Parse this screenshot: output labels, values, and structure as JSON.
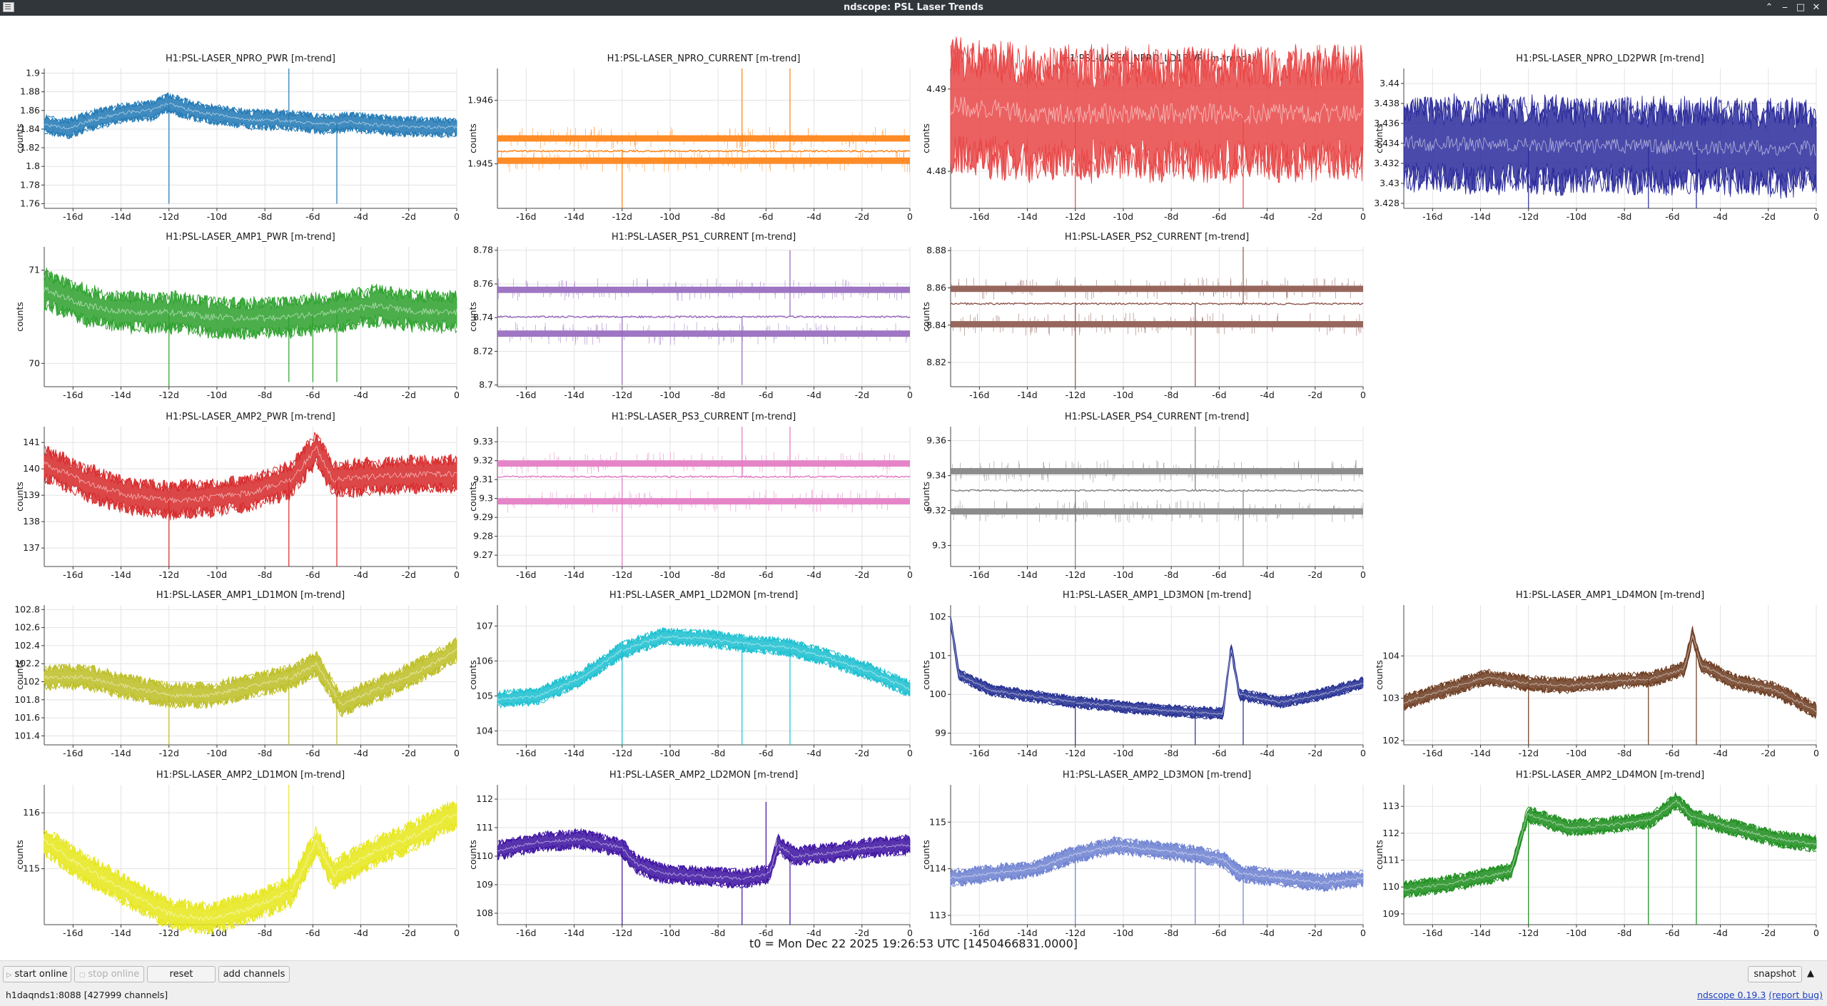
{
  "window": {
    "title": "ndscope: PSL Laser Trends"
  },
  "colors": {
    "titlebar": "#31363b",
    "grid": "#e3e3e3"
  },
  "t0_label": "t0 = Mon Dec 22 2025 19:26:53 UTC [1450466831.0000]",
  "toolbar": {
    "start_online": "start online",
    "stop_online": "stop online",
    "reset": "reset",
    "add_channels": "add channels",
    "snapshot": "snapshot"
  },
  "status": {
    "server": "h1daqnds1:8088  [427999 channels]",
    "version_link": "ndscope 0.19.3",
    "report_bug": "(report bug)"
  },
  "x_ticks": [
    "-16d",
    "-14d",
    "-12d",
    "-10d",
    "-8d",
    "-6d",
    "-4d",
    "-2d",
    "0"
  ],
  "ylabel": "counts",
  "chart_data": [
    {
      "type": "line",
      "title": "H1:PSL-LASER_NPRO_PWR [m-trend]",
      "color": "#1f77b4",
      "ylim": [
        1.755,
        1.905
      ],
      "yticks": [
        "1.76",
        "1.78",
        "1.8",
        "1.82",
        "1.84",
        "1.86",
        "1.88",
        "1.9"
      ],
      "profile": [
        [
          0,
          1.845
        ],
        [
          3,
          1.84
        ],
        [
          5,
          1.848
        ],
        [
          7,
          1.852
        ],
        [
          10,
          1.858
        ],
        [
          13,
          1.86
        ],
        [
          15,
          1.868
        ],
        [
          17,
          1.862
        ],
        [
          19,
          1.858
        ],
        [
          22,
          1.854
        ],
        [
          25,
          1.85
        ],
        [
          28,
          1.85
        ],
        [
          31,
          1.848
        ],
        [
          34,
          1.845
        ],
        [
          37,
          1.848
        ],
        [
          40,
          1.845
        ],
        [
          43,
          1.843
        ],
        [
          47,
          1.842
        ],
        [
          50,
          1.842
        ]
      ],
      "noise": 0.007,
      "spikes": [
        [
          -12,
          1.76
        ],
        [
          -7,
          1.905
        ],
        [
          -5,
          1.76
        ]
      ]
    },
    {
      "type": "band",
      "title": "H1:PSL-LASER_NPRO_CURRENT [m-trend]",
      "color": "#ff7f0e",
      "ylim": [
        1.9443,
        1.9465
      ],
      "yticks": [
        "1.945",
        "1.946"
      ],
      "levels": [
        1.9454,
        1.9452,
        1.94505
      ],
      "spikes": [
        [
          -12,
          1.9443
        ],
        [
          -7,
          1.9465
        ],
        [
          -5,
          1.9465
        ]
      ]
    },
    {
      "type": "line",
      "title": "H1:PSL-LASER_NPRO_LD1PWR [m-trend]",
      "color": "#e84545",
      "ylim": [
        4.4755,
        4.4925
      ],
      "yticks": [
        "4.48",
        "4.49"
      ],
      "profile": [
        [
          0,
          4.488
        ],
        [
          10,
          4.487
        ],
        [
          20,
          4.487
        ],
        [
          30,
          4.487
        ],
        [
          40,
          4.487
        ],
        [
          50,
          4.487
        ]
      ],
      "noise": 0.005,
      "floor": 4.4755,
      "spikes": [
        [
          -12,
          4.4755
        ],
        [
          -5,
          4.4755
        ]
      ]
    },
    {
      "type": "line",
      "title": "H1:PSL-LASER_NPRO_LD2PWR [m-trend]",
      "color": "#2a2a9b",
      "ylim": [
        3.4275,
        3.4415
      ],
      "yticks": [
        "3.428",
        "3.43",
        "3.432",
        "3.434",
        "3.436",
        "3.438",
        "3.44"
      ],
      "profile": [
        [
          0,
          3.434
        ],
        [
          50,
          3.4335
        ]
      ],
      "noise": 0.003,
      "spikes": [
        [
          -12,
          3.4275
        ],
        [
          -7,
          3.4275
        ],
        [
          -5,
          3.4275
        ]
      ]
    },
    {
      "type": "line",
      "title": "H1:PSL-LASER_AMP1_PWR [m-trend]",
      "color": "#2ca02c",
      "ylim": [
        69.75,
        71.25
      ],
      "yticks": [
        "70",
        "71"
      ],
      "profile": [
        [
          0,
          70.8
        ],
        [
          5,
          70.62
        ],
        [
          10,
          70.55
        ],
        [
          15,
          70.55
        ],
        [
          20,
          70.5
        ],
        [
          25,
          70.48
        ],
        [
          30,
          70.5
        ],
        [
          35,
          70.55
        ],
        [
          40,
          70.62
        ],
        [
          45,
          70.56
        ],
        [
          50,
          70.55
        ]
      ],
      "noise": 0.14,
      "spikes": [
        [
          -12,
          69.75
        ],
        [
          -7,
          69.8
        ],
        [
          -6,
          69.8
        ],
        [
          -5,
          69.8
        ]
      ]
    },
    {
      "type": "band",
      "title": "H1:PSL-LASER_PS1_CURRENT [m-trend]",
      "color": "#9467bd",
      "ylim": [
        8.699,
        8.782
      ],
      "yticks": [
        "8.7",
        "8.72",
        "8.74",
        "8.76",
        "8.78"
      ],
      "levels": [
        8.7565,
        8.7405,
        8.7305
      ],
      "spikes": [
        [
          -12,
          8.7
        ],
        [
          -7,
          8.7
        ],
        [
          -5,
          8.78
        ]
      ]
    },
    {
      "type": "band",
      "title": "H1:PSL-LASER_PS2_CURRENT [m-trend]",
      "color": "#8c564b",
      "ylim": [
        8.807,
        8.882
      ],
      "yticks": [
        "8.82",
        "8.84",
        "8.86",
        "8.88"
      ],
      "levels": [
        8.8595,
        8.8515,
        8.8405
      ],
      "spikes": [
        [
          -12,
          8.807
        ],
        [
          -7,
          8.807
        ],
        [
          -5,
          8.882
        ]
      ]
    },
    null,
    {
      "type": "line",
      "title": "H1:PSL-LASER_AMP2_PWR [m-trend]",
      "color": "#d62728",
      "ylim": [
        136.3,
        141.6
      ],
      "yticks": [
        "137",
        "138",
        "139",
        "140",
        "141"
      ],
      "profile": [
        [
          0,
          140.2
        ],
        [
          5,
          139.5
        ],
        [
          10,
          139.0
        ],
        [
          15,
          138.8
        ],
        [
          20,
          138.9
        ],
        [
          25,
          139.1
        ],
        [
          30,
          139.6
        ],
        [
          33,
          140.8
        ],
        [
          35,
          139.6
        ],
        [
          40,
          139.7
        ],
        [
          45,
          139.8
        ],
        [
          50,
          139.8
        ]
      ],
      "noise": 0.45,
      "spikes": [
        [
          -12,
          136.3
        ],
        [
          -7,
          136.3
        ],
        [
          -5,
          136.3
        ]
      ]
    },
    {
      "type": "band",
      "title": "H1:PSL-LASER_PS3_CURRENT [m-trend]",
      "color": "#e377c2",
      "ylim": [
        9.264,
        9.338
      ],
      "yticks": [
        "9.27",
        "9.28",
        "9.29",
        "9.3",
        "9.31",
        "9.32",
        "9.33"
      ],
      "levels": [
        9.3185,
        9.3115,
        9.2985
      ],
      "spikes": [
        [
          -12,
          9.264
        ],
        [
          -7,
          9.338
        ],
        [
          -5,
          9.338
        ]
      ]
    },
    {
      "type": "band",
      "title": "H1:PSL-LASER_PS4_CURRENT [m-trend]",
      "color": "#7f7f7f",
      "ylim": [
        9.288,
        9.368
      ],
      "yticks": [
        "9.3",
        "9.32",
        "9.34",
        "9.36"
      ],
      "levels": [
        9.3425,
        9.3315,
        9.3195
      ],
      "spikes": [
        [
          -12,
          9.288
        ],
        [
          -7,
          9.368
        ],
        [
          -5,
          9.288
        ]
      ]
    },
    null,
    {
      "type": "line",
      "title": "H1:PSL-LASER_AMP1_LD1MON [m-trend]",
      "color": "#bcbd22",
      "ylim": [
        101.3,
        102.85
      ],
      "yticks": [
        "101.4",
        "101.6",
        "101.8",
        "102",
        "102.2",
        "102.4",
        "102.6",
        "102.8"
      ],
      "profile": [
        [
          0,
          102.05
        ],
        [
          5,
          102.05
        ],
        [
          10,
          101.95
        ],
        [
          15,
          101.85
        ],
        [
          20,
          101.85
        ],
        [
          25,
          101.95
        ],
        [
          30,
          102.05
        ],
        [
          33,
          102.2
        ],
        [
          36,
          101.75
        ],
        [
          40,
          101.9
        ],
        [
          45,
          102.1
        ],
        [
          50,
          102.35
        ]
      ],
      "noise": 0.09,
      "spikes": [
        [
          -12,
          101.3
        ],
        [
          -7,
          101.3
        ],
        [
          -5,
          101.3
        ]
      ]
    },
    {
      "type": "line",
      "title": "H1:PSL-LASER_AMP1_LD2MON [m-trend]",
      "color": "#17becf",
      "ylim": [
        103.6,
        107.6
      ],
      "yticks": [
        "104",
        "105",
        "106",
        "107"
      ],
      "profile": [
        [
          0,
          104.9
        ],
        [
          5,
          105.0
        ],
        [
          10,
          105.5
        ],
        [
          15,
          106.3
        ],
        [
          20,
          106.7
        ],
        [
          25,
          106.65
        ],
        [
          30,
          106.5
        ],
        [
          35,
          106.4
        ],
        [
          40,
          106.1
        ],
        [
          45,
          105.7
        ],
        [
          50,
          105.2
        ]
      ],
      "noise": 0.16,
      "spikes": [
        [
          -12,
          103.6
        ],
        [
          -7,
          103.6
        ],
        [
          -5,
          103.6
        ]
      ]
    },
    {
      "type": "line",
      "title": "H1:PSL-LASER_AMP1_LD3MON [m-trend]",
      "color": "#1f2a8f",
      "ylim": [
        98.7,
        102.3
      ],
      "yticks": [
        "99",
        "100",
        "101",
        "102"
      ],
      "profile": [
        [
          0,
          101.9
        ],
        [
          1,
          100.5
        ],
        [
          5,
          100.1
        ],
        [
          15,
          99.8
        ],
        [
          25,
          99.6
        ],
        [
          33,
          99.5
        ],
        [
          34,
          101.2
        ],
        [
          35,
          100.0
        ],
        [
          40,
          99.8
        ],
        [
          45,
          100.0
        ],
        [
          50,
          100.3
        ]
      ],
      "noise": 0.1,
      "spikes": [
        [
          -12,
          98.7
        ],
        [
          -7,
          98.7
        ],
        [
          -5,
          98.7
        ]
      ]
    },
    {
      "type": "line",
      "title": "H1:PSL-LASER_AMP1_LD4MON [m-trend]",
      "color": "#6b3a1e",
      "ylim": [
        101.9,
        105.2
      ],
      "yticks": [
        "102",
        "103",
        "104"
      ],
      "profile": [
        [
          0,
          102.9
        ],
        [
          5,
          103.2
        ],
        [
          10,
          103.5
        ],
        [
          15,
          103.35
        ],
        [
          20,
          103.3
        ],
        [
          25,
          103.4
        ],
        [
          30,
          103.45
        ],
        [
          34,
          103.7
        ],
        [
          35,
          104.5
        ],
        [
          36,
          103.8
        ],
        [
          40,
          103.4
        ],
        [
          45,
          103.2
        ],
        [
          50,
          102.7
        ]
      ],
      "noise": 0.12,
      "spikes": [
        [
          -12,
          101.9
        ],
        [
          -7,
          101.9
        ],
        [
          -5,
          101.9
        ]
      ]
    },
    {
      "type": "line",
      "title": "H1:PSL-LASER_AMP2_LD1MON [m-trend]",
      "color": "#e6e619",
      "ylim": [
        114.0,
        116.5
      ],
      "yticks": [
        "115",
        "116"
      ],
      "profile": [
        [
          0,
          115.5
        ],
        [
          5,
          115.0
        ],
        [
          10,
          114.6
        ],
        [
          15,
          114.2
        ],
        [
          20,
          114.1
        ],
        [
          25,
          114.3
        ],
        [
          30,
          114.6
        ],
        [
          33,
          115.5
        ],
        [
          35,
          114.9
        ],
        [
          40,
          115.3
        ],
        [
          45,
          115.6
        ],
        [
          50,
          116.0
        ]
      ],
      "noise": 0.18,
      "spikes": [
        [
          -7,
          116.5
        ]
      ]
    },
    {
      "type": "line",
      "title": "H1:PSL-LASER_AMP2_LD2MON [m-trend]",
      "color": "#3b0fa0",
      "ylim": [
        107.6,
        112.5
      ],
      "yticks": [
        "108",
        "109",
        "110",
        "111",
        "112"
      ],
      "profile": [
        [
          0,
          110.2
        ],
        [
          5,
          110.5
        ],
        [
          10,
          110.6
        ],
        [
          15,
          110.3
        ],
        [
          17,
          109.7
        ],
        [
          20,
          109.4
        ],
        [
          25,
          109.3
        ],
        [
          30,
          109.2
        ],
        [
          33,
          109.4
        ],
        [
          34,
          110.4
        ],
        [
          36,
          110.0
        ],
        [
          40,
          110.1
        ],
        [
          45,
          110.3
        ],
        [
          50,
          110.4
        ]
      ],
      "noise": 0.22,
      "spikes": [
        [
          -12,
          107.6
        ],
        [
          -7,
          107.6
        ],
        [
          -5,
          107.6
        ],
        [
          -6,
          111.9
        ]
      ]
    },
    {
      "type": "line",
      "title": "H1:PSL-LASER_AMP2_LD3MON [m-trend]",
      "color": "#6b7fd0",
      "ylim": [
        112.8,
        115.8
      ],
      "yticks": [
        "113",
        "114",
        "115"
      ],
      "profile": [
        [
          0,
          113.8
        ],
        [
          5,
          113.9
        ],
        [
          10,
          114.0
        ],
        [
          15,
          114.3
        ],
        [
          20,
          114.5
        ],
        [
          25,
          114.4
        ],
        [
          30,
          114.3
        ],
        [
          33,
          114.2
        ],
        [
          35,
          113.9
        ],
        [
          40,
          113.8
        ],
        [
          45,
          113.7
        ],
        [
          50,
          113.8
        ]
      ],
      "noise": 0.12,
      "spikes": [
        [
          -12,
          112.8
        ],
        [
          -7,
          112.8
        ],
        [
          -5,
          112.8
        ]
      ]
    },
    {
      "type": "line",
      "title": "H1:PSL-LASER_AMP2_LD4MON [m-trend]",
      "color": "#1a8c1a",
      "ylim": [
        108.6,
        113.8
      ],
      "yticks": [
        "109",
        "110",
        "111",
        "112",
        "113"
      ],
      "profile": [
        [
          0,
          109.9
        ],
        [
          5,
          110.1
        ],
        [
          10,
          110.4
        ],
        [
          13,
          110.6
        ],
        [
          15,
          112.7
        ],
        [
          20,
          112.2
        ],
        [
          25,
          112.3
        ],
        [
          30,
          112.5
        ],
        [
          33,
          113.2
        ],
        [
          35,
          112.6
        ],
        [
          40,
          112.2
        ],
        [
          45,
          111.8
        ],
        [
          50,
          111.6
        ]
      ],
      "noise": 0.2,
      "spikes": [
        [
          -12,
          108.6
        ],
        [
          -7,
          108.6
        ],
        [
          -5,
          108.6
        ]
      ]
    }
  ]
}
